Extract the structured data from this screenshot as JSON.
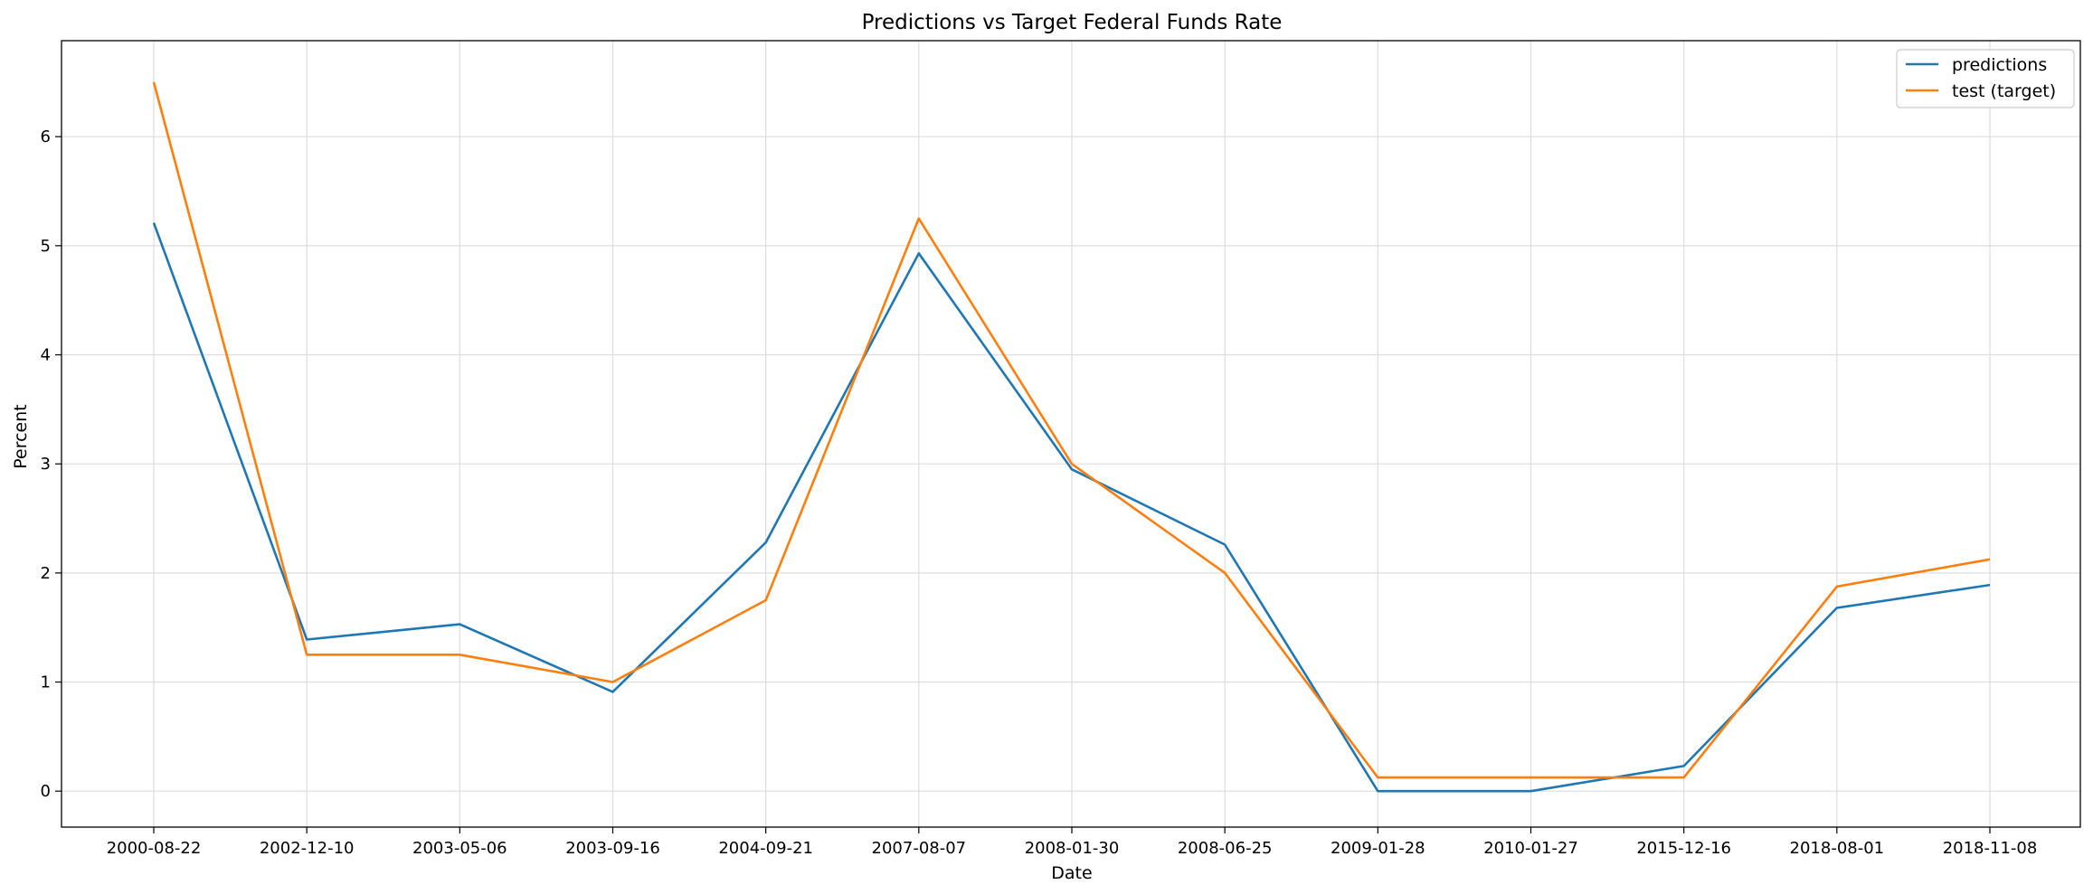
{
  "chart_data": {
    "type": "line",
    "title": "Predictions vs Target Federal Funds Rate",
    "xlabel": "Date",
    "ylabel": "Percent",
    "categories": [
      "2000-08-22",
      "2002-12-10",
      "2003-05-06",
      "2003-09-16",
      "2004-09-21",
      "2007-08-07",
      "2008-01-30",
      "2008-06-25",
      "2009-01-28",
      "2010-01-27",
      "2015-12-16",
      "2018-08-01",
      "2018-11-08"
    ],
    "series": [
      {
        "name": "predictions",
        "color": "#1f77b4",
        "values": [
          5.21,
          1.39,
          1.53,
          0.91,
          2.28,
          4.93,
          2.95,
          2.26,
          0.0,
          0.0,
          0.23,
          1.68,
          1.89
        ]
      },
      {
        "name": "test (target)",
        "color": "#ff7f0e",
        "values": [
          6.5,
          1.25,
          1.25,
          1.0,
          1.75,
          5.25,
          3.0,
          2.0,
          0.125,
          0.125,
          0.125,
          1.875,
          2.125
        ]
      }
    ],
    "ylim": [
      -0.33,
      6.88
    ],
    "yticks": [
      0,
      1,
      2,
      3,
      4,
      5,
      6
    ],
    "grid": true,
    "legend_position": "top-right"
  }
}
